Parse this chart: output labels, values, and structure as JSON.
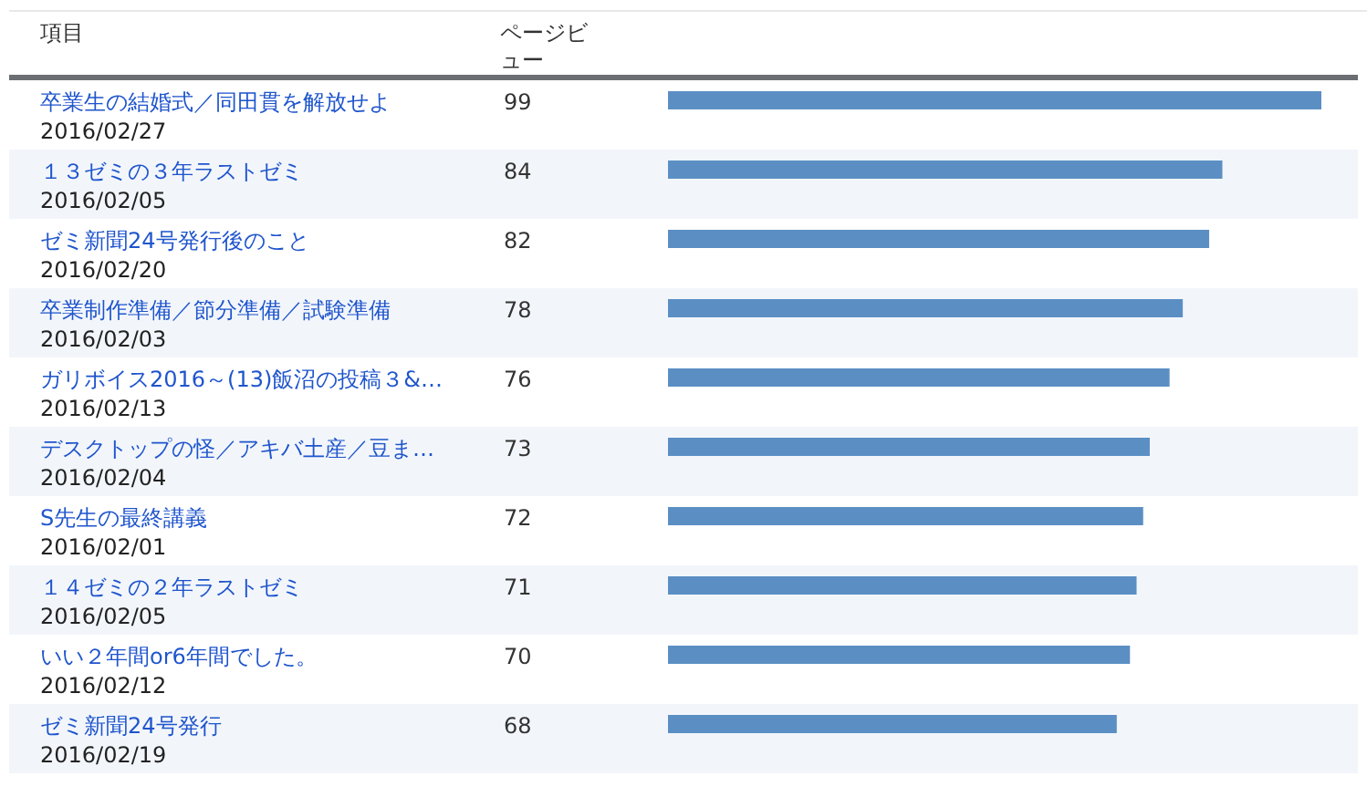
{
  "chart_data": {
    "type": "bar",
    "orientation": "horizontal",
    "ylabel": "項目",
    "xlabel": "ページビュー",
    "color": "#5b8fc4",
    "data_labels": true,
    "categories": [
      "卒業生の結婚式／同田貫を解放せよ\n2016/02/27",
      "１３ゼミの３年ラストゼミ\n2016/02/05",
      "ゼミ新聞24号発行後のこと\n2016/02/20",
      "卒業制作準備／節分準備／試験準備\n2016/02/03",
      "ガリボイス2016～(13)飯沼の投稿３&…\n2016/02/13",
      "デスクトップの怪／アキバ土産／豆ま…\n2016/02/04",
      "S先生の最終講義\n2016/02/01",
      "１４ゼミの２年ラストゼミ\n2016/02/05",
      "いい２年間or6年間でした。\n2016/02/12",
      "ゼミ新聞24号発行\n2016/02/19"
    ],
    "values": [
      99,
      84,
      82,
      78,
      76,
      73,
      72,
      71,
      70,
      68
    ]
  }
}
